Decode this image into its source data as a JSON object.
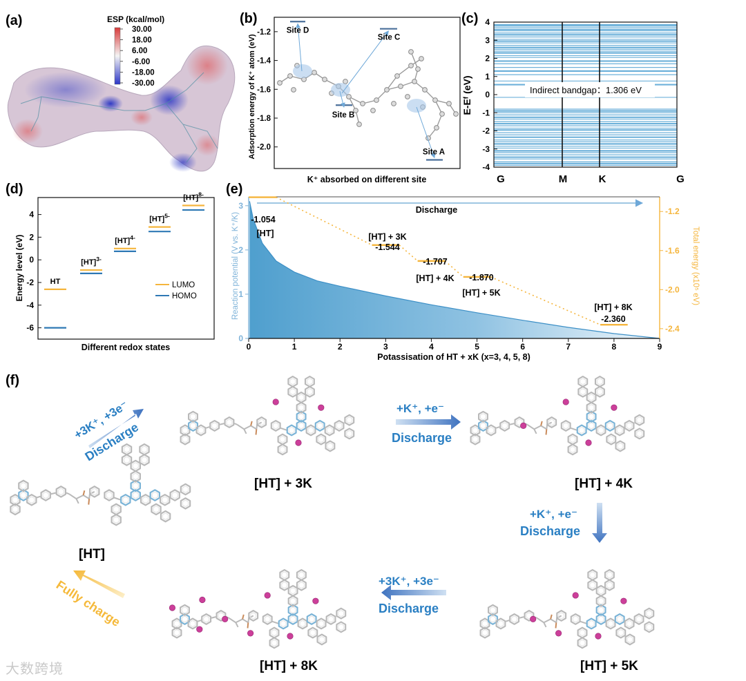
{
  "panels": {
    "a": {
      "label": "(a)",
      "cb_title": "ESP (kcal/mol)",
      "cb_ticks": [
        "30.00",
        "18.00",
        "6.00",
        "-6.00",
        "-18.00",
        "-30.00"
      ],
      "colors": {
        "positive": "#d83a3a",
        "neutral": "#f2f2f2",
        "negative": "#2b36c8"
      }
    },
    "b": {
      "label": "(b)",
      "xlabel": "K⁺ absorbed on different site",
      "ylabel": "Adsorption energy of K⁺ atom (eV)"
    },
    "c": {
      "label": "(c)",
      "ylabel": "E-Eᶠ (eV)",
      "annotation": "Indirect bandgap：1.306 eV",
      "kpoints": [
        "G",
        "M",
        "K",
        "G"
      ]
    },
    "d": {
      "label": "(d)",
      "xlabel": "Different redox states",
      "ylabel": "Energy level (eV)",
      "legend": [
        "LUMO",
        "HOMO"
      ]
    },
    "e": {
      "label": "(e)",
      "xlabel": "Potassisation of HT + xK (x=3, 4, 5, 8)",
      "ylabel_left": "Reaction potential (V vs. K⁺/K)",
      "ylabel_right": "Total energy (x10⁵ eV)",
      "arrow_label": "Discharge"
    },
    "f": {
      "label": "(f)",
      "structures": [
        "[HT]",
        "[HT] + 3K",
        "[HT] + 4K",
        "[HT] + 5K",
        "[HT] + 8K"
      ],
      "steps": [
        {
          "line1": "+3K⁺, +3e⁻",
          "line2": "Discharge"
        },
        {
          "line1": "+K⁺, +e⁻",
          "line2": "Discharge"
        },
        {
          "line1": "+K⁺, +e⁻",
          "line2": "Discharge"
        },
        {
          "line1": "+3K⁺, +3e⁻",
          "line2": "Discharge"
        },
        {
          "line1": "Fully charge",
          "line2": ""
        }
      ]
    }
  },
  "chart_data": [
    {
      "panel": "b",
      "type": "scatter",
      "xlabel": "K⁺ absorbed on different site",
      "ylabel": "Adsorption energy of K⁺ atom (eV)",
      "ylim": [
        -2.15,
        -1.1
      ],
      "yticks": [
        "-1.2",
        "-1.4",
        "-1.6",
        "-1.8",
        "-2.0"
      ],
      "points": [
        {
          "name": "Site D",
          "y": -1.13
        },
        {
          "name": "Site C",
          "y": -1.18
        },
        {
          "name": "Site B",
          "y": -1.71
        },
        {
          "name": "Site A",
          "y": -2.09
        }
      ]
    },
    {
      "panel": "c",
      "type": "line",
      "ylabel": "E-Eᶠ (eV)",
      "ylim": [
        -4,
        4
      ],
      "yticks": [
        "4",
        "3",
        "2",
        "1",
        "0",
        "-1",
        "-2",
        "-3",
        "-4"
      ],
      "kpoints": [
        "G",
        "M",
        "K",
        "G"
      ],
      "bandgap_eV": 1.306,
      "bands": [
        3.85,
        3.8,
        3.72,
        3.6,
        3.52,
        3.4,
        3.3,
        3.18,
        3.05,
        2.95,
        2.85,
        2.72,
        2.6,
        2.5,
        2.4,
        2.3,
        2.15,
        2.05,
        1.85,
        1.7,
        1.5,
        1.3,
        1.1,
        0.75,
        0.55,
        -0.15,
        -0.8,
        -0.9,
        -1.0,
        -1.12,
        -1.25,
        -1.35,
        -1.48,
        -1.6,
        -1.72,
        -1.85,
        -1.95,
        -2.1,
        -2.22,
        -2.35,
        -2.5,
        -2.6,
        -2.72,
        -2.85,
        -2.95,
        -3.1,
        -3.2,
        -3.32,
        -3.45,
        -3.55,
        -3.7,
        -3.8,
        -3.9
      ]
    },
    {
      "panel": "d",
      "type": "bar",
      "categories": [
        "HT",
        "[HT]3-",
        "[HT]4-",
        "[HT]5-",
        "[HT]8-"
      ],
      "xlabel": "Different redox states",
      "ylabel": "Energy level (eV)",
      "ylim": [
        -7,
        5.5
      ],
      "yticks": [
        "4",
        "2",
        "0",
        "-2",
        "-4",
        "-6"
      ],
      "series": [
        {
          "name": "LUMO",
          "color": "#f5b53c",
          "values": [
            -2.6,
            -0.9,
            1.0,
            2.9,
            4.8
          ]
        },
        {
          "name": "HOMO",
          "color": "#2e78b4",
          "values": [
            -6.0,
            -1.2,
            0.75,
            2.5,
            4.4
          ]
        }
      ]
    },
    {
      "panel": "e",
      "type": "area",
      "xlabel": "Potassisation of HT + xK (x=3, 4, 5, 8)",
      "ylabel": "Reaction potential (V vs. K⁺/K)",
      "xlim": [
        0,
        9
      ],
      "ylim": [
        0,
        3.2
      ],
      "xticks": [
        "0",
        "1",
        "2",
        "3",
        "4",
        "5",
        "6",
        "7",
        "8",
        "9"
      ],
      "yticks": [
        "0",
        "1",
        "2",
        "3"
      ],
      "curve": {
        "x": [
          0.02,
          0.1,
          0.3,
          0.6,
          1,
          1.5,
          2,
          3,
          4,
          5,
          6,
          7,
          8,
          9
        ],
        "y": [
          3.1,
          2.7,
          2.15,
          1.75,
          1.5,
          1.3,
          1.18,
          0.96,
          0.76,
          0.58,
          0.41,
          0.25,
          0.11,
          0
        ]
      },
      "energy_axis": {
        "label": "Total energy (x10⁵ eV)",
        "ylim": [
          -2.5,
          -1.05
        ],
        "yticks": [
          "-1.2",
          "-1.6",
          "-2.0",
          "-2.4"
        ]
      },
      "energy_levels": [
        {
          "name": "[HT]",
          "value": -1.054,
          "value_label": "-1.054",
          "x0": 0,
          "x1": 0.6
        },
        {
          "name": "[HT] + 3K",
          "value": -1.544,
          "value_label": "-1.544",
          "x0": 2.7,
          "x1": 3.3
        },
        {
          "name": "[HT] + 4K",
          "value": -1.707,
          "value_label": "-1.707",
          "x0": 3.7,
          "x1": 4.3
        },
        {
          "name": "[HT] + 5K",
          "value": -1.87,
          "value_label": "-1.870",
          "x0": 4.7,
          "x1": 5.3
        },
        {
          "name": "[HT] + 8K",
          "value": -2.36,
          "value_label": "-2.360",
          "x0": 7.7,
          "x1": 8.3
        }
      ]
    }
  ],
  "watermark": "大数跨境"
}
